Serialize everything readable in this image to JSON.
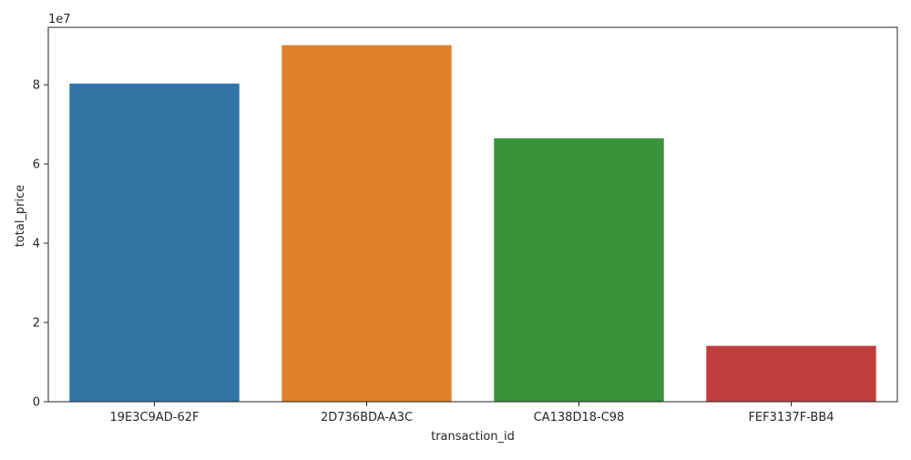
{
  "chart_data": {
    "type": "bar",
    "title": "",
    "xlabel": "transaction_id",
    "ylabel": "total_price",
    "categories": [
      "19E3C9AD-62F",
      "2D736BDA-A3C",
      "CA138D18-C98",
      "FEF3137F-BB4"
    ],
    "values": [
      80300000,
      90000000,
      66500000,
      14100000
    ],
    "colors": [
      "#3274a1",
      "#e1812c",
      "#3a923a",
      "#c03d3e"
    ],
    "ylim": [
      0,
      94500000
    ],
    "yticks": [
      0,
      20000000,
      40000000,
      60000000,
      80000000
    ],
    "ytick_labels": [
      "0",
      "2",
      "4",
      "6",
      "8"
    ],
    "y_offset_label": "1e7",
    "grid": false,
    "legend": "none"
  }
}
